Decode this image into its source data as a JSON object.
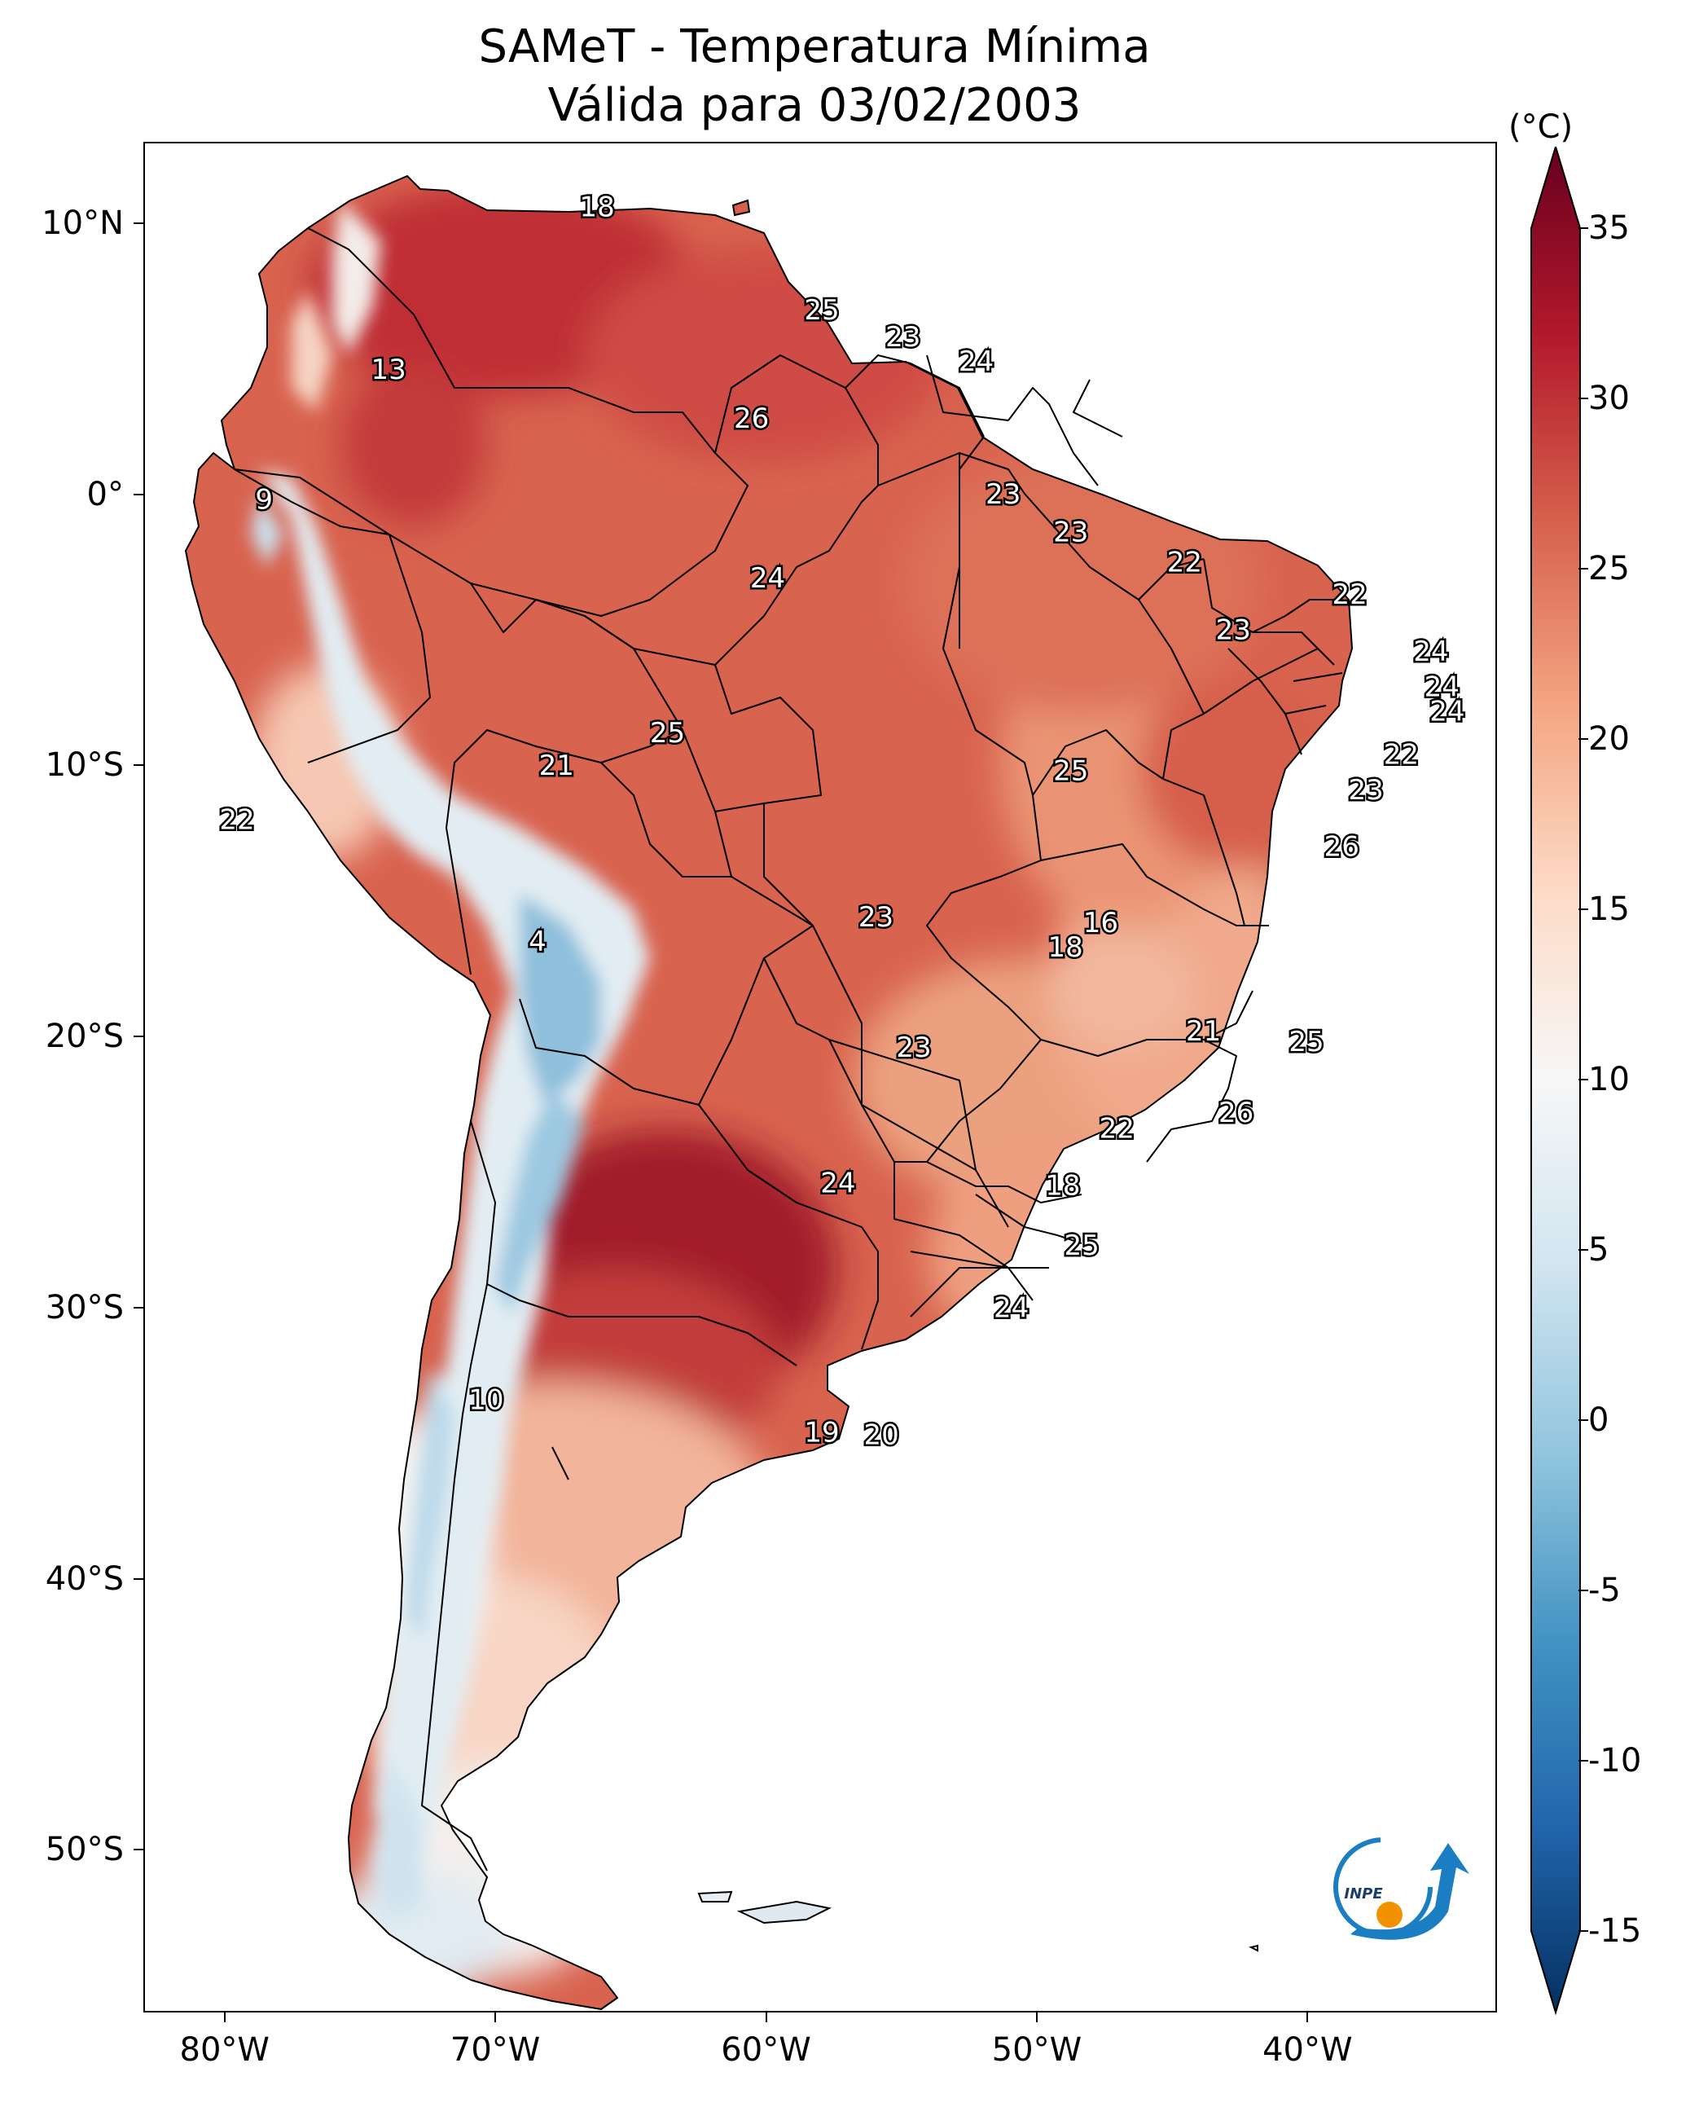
{
  "title": {
    "line1": "SAMeT - Temperatura Mínima",
    "line2": "Válida para 03/02/2003"
  },
  "map": {
    "lon_range": [
      -83,
      -33
    ],
    "lat_range": [
      -56,
      13
    ],
    "lat_ticks": [
      "10°N",
      "0°",
      "10°S",
      "20°S",
      "30°S",
      "40°S",
      "50°S"
    ],
    "lat_tick_values": [
      10,
      0,
      -10,
      -20,
      -30,
      -40,
      -50
    ],
    "lon_ticks": [
      "80°W",
      "70°W",
      "60°W",
      "50°W",
      "40°W"
    ],
    "lon_tick_values": [
      -80,
      -70,
      -60,
      -50,
      -40
    ],
    "labels": [
      {
        "text": "18",
        "lon": -66.3,
        "lat": 10.6
      },
      {
        "text": "13",
        "lon": -74.0,
        "lat": 4.6
      },
      {
        "text": "9",
        "lon": -78.6,
        "lat": -0.2
      },
      {
        "text": "25",
        "lon": -58.0,
        "lat": 6.8
      },
      {
        "text": "23",
        "lon": -55.0,
        "lat": 5.8
      },
      {
        "text": "24",
        "lon": -52.3,
        "lat": 4.9
      },
      {
        "text": "26",
        "lon": -60.6,
        "lat": 2.8
      },
      {
        "text": "23",
        "lon": -51.3,
        "lat": 0.0
      },
      {
        "text": "23",
        "lon": -48.8,
        "lat": -1.4
      },
      {
        "text": "24",
        "lon": -60.0,
        "lat": -3.1
      },
      {
        "text": "22",
        "lon": -44.6,
        "lat": -2.5
      },
      {
        "text": "22",
        "lon": -38.5,
        "lat": -3.7
      },
      {
        "text": "23",
        "lon": -42.8,
        "lat": -5.0
      },
      {
        "text": "24",
        "lon": -35.5,
        "lat": -5.8
      },
      {
        "text": "24",
        "lon": -35.1,
        "lat": -7.1
      },
      {
        "text": "24",
        "lon": -34.9,
        "lat": -8.0
      },
      {
        "text": "25",
        "lon": -63.7,
        "lat": -8.8
      },
      {
        "text": "21",
        "lon": -67.8,
        "lat": -10.0
      },
      {
        "text": "25",
        "lon": -48.8,
        "lat": -10.2
      },
      {
        "text": "22",
        "lon": -36.6,
        "lat": -9.6
      },
      {
        "text": "23",
        "lon": -37.9,
        "lat": -10.9
      },
      {
        "text": "22",
        "lon": -79.6,
        "lat": -12.0
      },
      {
        "text": "26",
        "lon": -38.8,
        "lat": -13.0
      },
      {
        "text": "4",
        "lon": -68.5,
        "lat": -16.5
      },
      {
        "text": "16",
        "lon": -47.7,
        "lat": -15.8
      },
      {
        "text": "18",
        "lon": -49.0,
        "lat": -16.7
      },
      {
        "text": "23",
        "lon": -56.0,
        "lat": -15.6
      },
      {
        "text": "23",
        "lon": -54.6,
        "lat": -20.4
      },
      {
        "text": "21",
        "lon": -43.9,
        "lat": -19.8
      },
      {
        "text": "25",
        "lon": -40.1,
        "lat": -20.2
      },
      {
        "text": "26",
        "lon": -42.7,
        "lat": -22.8
      },
      {
        "text": "22",
        "lon": -47.1,
        "lat": -23.4
      },
      {
        "text": "24",
        "lon": -57.4,
        "lat": -25.4
      },
      {
        "text": "18",
        "lon": -49.1,
        "lat": -25.5
      },
      {
        "text": "25",
        "lon": -48.4,
        "lat": -27.7
      },
      {
        "text": "24",
        "lon": -51.0,
        "lat": -30.0
      },
      {
        "text": "10",
        "lon": -70.4,
        "lat": -33.4
      },
      {
        "text": "19",
        "lon": -58.0,
        "lat": -34.6
      },
      {
        "text": "20",
        "lon": -55.8,
        "lat": -34.7
      }
    ]
  },
  "colorbar": {
    "unit": "(°C)",
    "range": [
      -15,
      35
    ],
    "ticks": [
      "35",
      "30",
      "25",
      "20",
      "15",
      "10",
      "5",
      "0",
      "-5",
      "-10",
      "-15"
    ],
    "tick_values": [
      35,
      30,
      25,
      20,
      15,
      10,
      5,
      0,
      -5,
      -10,
      -15
    ],
    "colormap": "RdBu_r",
    "colors": [
      "#053061",
      "#2166ac",
      "#4393c3",
      "#92c5de",
      "#d1e5f0",
      "#f7f7f7",
      "#fddbc7",
      "#f4a582",
      "#d6604d",
      "#b2182b",
      "#67001f"
    ]
  },
  "logo": {
    "text": "INPE",
    "colors": {
      "arc": "#1b7ec2",
      "dot": "#f39200"
    }
  }
}
